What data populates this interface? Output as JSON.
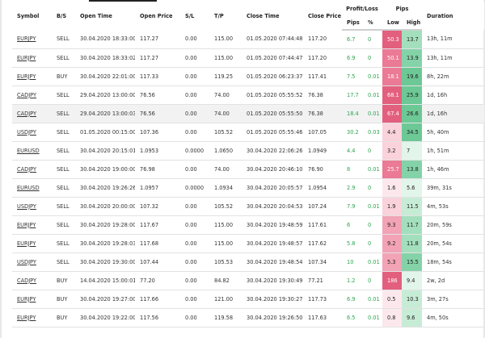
{
  "headers": {
    "symbol": "Symbol",
    "bs": "B/S",
    "open_time": "Open Time",
    "open_price": "Open Price",
    "sl": "S/L",
    "tp": "T/P",
    "close_time": "Close Time",
    "close_price": "Close Price",
    "profit_loss": "Profit/Loss",
    "pips_group": "Pips",
    "pl_pips": "Pips",
    "pl_pct": "%",
    "low": "Low",
    "high": "High",
    "duration": "Duration"
  },
  "colors": {
    "low_scale": [
      "#fce8ec",
      "#f9d2dc",
      "#f2a3b6",
      "#ea7a95",
      "#e35f7e"
    ],
    "high_scale": [
      "#e2f5ea",
      "#c7ecd6",
      "#a3dfbd",
      "#84d3a8",
      "#6cc895"
    ],
    "profit_text": "#2ea44f"
  },
  "rows": [
    {
      "symbol": "EURJPY",
      "bs": "SELL",
      "open_time": "30.04.2020 18:33:00",
      "open_price": "117.27",
      "sl": "0.00",
      "tp": "115.00",
      "close_time": "01.05.2020 07:44:48",
      "close_price": "117.20",
      "pips": "6.7",
      "pct": "0",
      "low": "50.3",
      "high": "13.7",
      "duration": "13h, 11m"
    },
    {
      "symbol": "EURJPY",
      "bs": "SELL",
      "open_time": "30.04.2020 18:33:02",
      "open_price": "117.27",
      "sl": "0.00",
      "tp": "115.00",
      "close_time": "01.05.2020 07:44:47",
      "close_price": "117.20",
      "pips": "6.9",
      "pct": "0",
      "low": "50.1",
      "high": "13.9",
      "duration": "13h, 11m"
    },
    {
      "symbol": "EURJPY",
      "bs": "BUY",
      "open_time": "30.04.2020 22:01:00",
      "open_price": "117.33",
      "sl": "0.00",
      "tp": "119.25",
      "close_time": "01.05.2020 06:23:37",
      "close_price": "117.41",
      "pips": "7.5",
      "pct": "0.01",
      "low": "18.1",
      "high": "19.6",
      "duration": "8h, 22m"
    },
    {
      "symbol": "CADJPY",
      "bs": "SELL",
      "open_time": "29.04.2020 13:00:00",
      "open_price": "76.56",
      "sl": "0.00",
      "tp": "74.00",
      "close_time": "01.05.2020 05:55:52",
      "close_price": "76.38",
      "pips": "17.7",
      "pct": "0.01",
      "low": "68.1",
      "high": "25.9",
      "duration": "1d, 16h"
    },
    {
      "symbol": "CADJPY",
      "bs": "SELL",
      "open_time": "29.04.2020 13:00:03",
      "open_price": "76.56",
      "sl": "0.00",
      "tp": "74.00",
      "close_time": "01.05.2020 05:55:50",
      "close_price": "76.38",
      "pips": "18.4",
      "pct": "0.01",
      "low": "67.4",
      "high": "26.6",
      "duration": "1d, 16h"
    },
    {
      "symbol": "USDJPY",
      "bs": "SELL",
      "open_time": "01.05.2020 00:15:00",
      "open_price": "107.36",
      "sl": "0.00",
      "tp": "105.52",
      "close_time": "01.05.2020 05:55:46",
      "close_price": "107.05",
      "pips": "30.2",
      "pct": "0.03",
      "low": "4.4",
      "high": "34.5",
      "duration": "5h, 40m"
    },
    {
      "symbol": "EURUSD",
      "bs": "SELL",
      "open_time": "30.04.2020 20:15:01",
      "open_price": "1.0953",
      "sl": "0.0000",
      "tp": "1.0650",
      "close_time": "30.04.2020 22:06:26",
      "close_price": "1.0949",
      "pips": "4.4",
      "pct": "0",
      "low": "3.2",
      "high": "7",
      "duration": "1h, 51m"
    },
    {
      "symbol": "CADJPY",
      "bs": "SELL",
      "open_time": "30.04.2020 19:00:00",
      "open_price": "76.98",
      "sl": "0.00",
      "tp": "74.00",
      "close_time": "30.04.2020 20:46:10",
      "close_price": "76.90",
      "pips": "8",
      "pct": "0.01",
      "low": "25.7",
      "high": "13.8",
      "duration": "1h, 46m"
    },
    {
      "symbol": "EURUSD",
      "bs": "SELL",
      "open_time": "30.04.2020 19:26:26",
      "open_price": "1.0957",
      "sl": "0.0000",
      "tp": "1.0934",
      "close_time": "30.04.2020 20:05:57",
      "close_price": "1.0954",
      "pips": "2.9",
      "pct": "0",
      "low": "1.6",
      "high": "5.6",
      "duration": "39m, 31s"
    },
    {
      "symbol": "USDJPY",
      "bs": "SELL",
      "open_time": "30.04.2020 20:00:00",
      "open_price": "107.32",
      "sl": "0.00",
      "tp": "105.52",
      "close_time": "30.04.2020 20:04:53",
      "close_price": "107.24",
      "pips": "7.9",
      "pct": "0.01",
      "low": "1.9",
      "high": "11.5",
      "duration": "4m, 53s"
    },
    {
      "symbol": "EURJPY",
      "bs": "SELL",
      "open_time": "30.04.2020 19:28:00",
      "open_price": "117.67",
      "sl": "0.00",
      "tp": "115.00",
      "close_time": "30.04.2020 19:48:59",
      "close_price": "117.61",
      "pips": "6",
      "pct": "0",
      "low": "9.3",
      "high": "11.7",
      "duration": "20m, 59s"
    },
    {
      "symbol": "EURJPY",
      "bs": "SELL",
      "open_time": "30.04.2020 19:28:03",
      "open_price": "117.68",
      "sl": "0.00",
      "tp": "115.00",
      "close_time": "30.04.2020 19:48:57",
      "close_price": "117.62",
      "pips": "5.8",
      "pct": "0",
      "low": "9.2",
      "high": "11.8",
      "duration": "20m, 54s"
    },
    {
      "symbol": "USDJPY",
      "bs": "SELL",
      "open_time": "30.04.2020 19:30:00",
      "open_price": "107.44",
      "sl": "0.00",
      "tp": "105.53",
      "close_time": "30.04.2020 19:48:54",
      "close_price": "107.34",
      "pips": "10",
      "pct": "0.01",
      "low": "5.3",
      "high": "15.5",
      "duration": "18m, 54s"
    },
    {
      "symbol": "CADJPY",
      "bs": "BUY",
      "open_time": "14.04.2020 15:00:01",
      "open_price": "77.20",
      "sl": "0.00",
      "tp": "84.82",
      "close_time": "30.04.2020 19:30:49",
      "close_price": "77.21",
      "pips": "1.2",
      "pct": "0",
      "low": "186",
      "high": "9.4",
      "duration": "2w, 2d"
    },
    {
      "symbol": "EURJPY",
      "bs": "BUY",
      "open_time": "30.04.2020 19:27:00",
      "open_price": "117.66",
      "sl": "0.00",
      "tp": "121.00",
      "close_time": "30.04.2020 19:30:27",
      "close_price": "117.73",
      "pips": "6.9",
      "pct": "0.01",
      "low": "0.5",
      "high": "10.3",
      "duration": "3m, 27s"
    },
    {
      "symbol": "EURJPY",
      "bs": "BUY",
      "open_time": "30.04.2020 19:22:00",
      "open_price": "117.56",
      "sl": "0.00",
      "tp": "119.58",
      "close_time": "30.04.2020 19:26:50",
      "close_price": "117.63",
      "pips": "6.5",
      "pct": "0.01",
      "low": "0.8",
      "high": "9.6",
      "duration": "4m, 50s"
    }
  ]
}
